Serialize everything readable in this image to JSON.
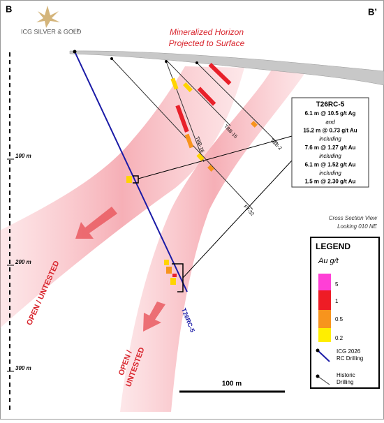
{
  "header": {
    "left_label": "B",
    "right_label": "B’",
    "logo_text": "ICG SILVER & GOLD",
    "logo_suffix": "LTD."
  },
  "surface_annotation": [
    "Mineralized Horizon",
    "Projected to Surface"
  ],
  "callout": {
    "title": "T26RC-5",
    "lines": [
      "6.1 m @ 10.5 g/t Ag",
      "and",
      "15.2 m @ 0.73 g/t Au",
      "including",
      "7.6 m @ 1.27 g/t Au",
      "including",
      "6.1 m @ 1.52 g/t Au",
      "including",
      "1.5 m @ 2.30 g/t Au"
    ]
  },
  "drill_holes": [
    {
      "label": "TBB-15"
    },
    {
      "label": "TBB-16"
    },
    {
      "label": "TBB-2"
    },
    {
      "label": "FT-32"
    },
    {
      "label": "T26RC-5"
    }
  ],
  "depth_ticks": [
    "100 m",
    "200 m",
    "300 m"
  ],
  "view_note": [
    "Cross Section View",
    "Looking 010 NE"
  ],
  "zone_labels": [
    [
      "OPEN / UNTESTED"
    ],
    [
      "OPEN /",
      "UNTESTED"
    ]
  ],
  "legend": {
    "title": "LEGEND",
    "unit": "Au g/t",
    "grades": [
      "5",
      "1",
      "0.5",
      "0.2"
    ],
    "items": [
      [
        "ICG 2026",
        "RC Drilling"
      ],
      [
        "Historic",
        "Drilling"
      ]
    ]
  },
  "scale_bar": "100 m"
}
